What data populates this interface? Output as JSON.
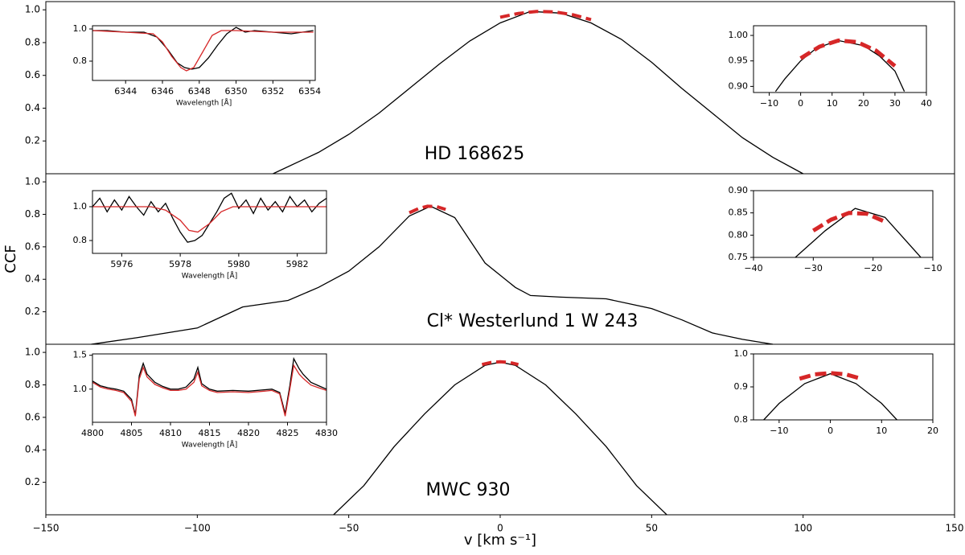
{
  "chart_data": {
    "type": "line",
    "xlabel": "v [km s⁻¹]",
    "ylabel": "CCF",
    "xlim": [
      -150,
      150
    ],
    "xticks": [
      {
        "value": -150,
        "label": "−150"
      },
      {
        "value": -100,
        "label": "−100"
      },
      {
        "value": -50,
        "label": "−50"
      },
      0,
      50,
      100,
      150
    ],
    "ylim": [
      0,
      1.05
    ],
    "yticks": [
      0.2,
      0.4,
      0.6,
      0.8,
      {
        "value": 1,
        "label": "1.0"
      }
    ],
    "panels": [
      {
        "title": "HD 168625",
        "series": [
          {
            "color": "#000000",
            "x": [
              -75,
              -60,
              -50,
              -40,
              -30,
              -20,
              -10,
              0,
              10,
              20,
              30,
              40,
              50,
              60,
              70,
              80,
              90,
              100
            ],
            "values": [
              0,
              0.13,
              0.24,
              0.37,
              0.52,
              0.67,
              0.81,
              0.92,
              0.99,
              0.98,
              0.92,
              0.82,
              0.68,
              0.52,
              0.37,
              0.22,
              0.1,
              0
            ]
          },
          {
            "color": "#d62728",
            "dash": true,
            "x": [
              0,
              6,
              12,
              18,
              24,
              30
            ],
            "values": [
              0.955,
              0.978,
              0.99,
              0.987,
              0.97,
              0.94
            ]
          }
        ],
        "insets": [
          {
            "xlabel": "Wavelength [Å]",
            "xlim": [
              6342.2,
              6354.3
            ],
            "xticks": [
              6344,
              6346,
              6348,
              6350,
              6352,
              6354
            ],
            "ylim": [
              0.68,
              1.02
            ],
            "yticks": [
              0.8,
              {
                "value": 1,
                "label": "1.0"
              }
            ],
            "series": [
              {
                "color": "#000000",
                "x": [
                  6342.2,
                  6343,
                  6344,
                  6345,
                  6345.7,
                  6346.3,
                  6346.8,
                  6347.2,
                  6347.6,
                  6348,
                  6348.5,
                  6349,
                  6349.5,
                  6350,
                  6350.5,
                  6351,
                  6352,
                  6353,
                  6354.2
                ],
                "values": [
                  0.99,
                  0.99,
                  0.98,
                  0.98,
                  0.95,
                  0.87,
                  0.79,
                  0.76,
                  0.75,
                  0.76,
                  0.82,
                  0.9,
                  0.97,
                  1.01,
                  0.98,
                  0.99,
                  0.98,
                  0.97,
                  0.99
                ]
              },
              {
                "color": "#d62728",
                "x": [
                  6342.2,
                  6344,
                  6345.5,
                  6346,
                  6346.5,
                  6347,
                  6347.3,
                  6347.7,
                  6348.2,
                  6348.7,
                  6349.2,
                  6350,
                  6352,
                  6354.2
                ],
                "values": [
                  0.99,
                  0.98,
                  0.97,
                  0.92,
                  0.83,
                  0.76,
                  0.74,
                  0.76,
                  0.86,
                  0.96,
                  0.99,
                  0.99,
                  0.98,
                  0.98
                ]
              }
            ]
          },
          {
            "xlim": [
              -15,
              40
            ],
            "xticks": [
              {
                "value": -10,
                "label": "−10"
              },
              0,
              10,
              20,
              30,
              40
            ],
            "ylim": [
              0.888,
              1.019
            ],
            "yticks": [
              {
                "value": 0.9,
                "label": "0.90"
              },
              0.95,
              {
                "value": 1,
                "label": "1.00"
              }
            ],
            "series": [
              {
                "color": "#000000",
                "x": [
                  -8,
                  -5,
                  0,
                  5,
                  12,
                  20,
                  25,
                  30,
                  33
                ],
                "values": [
                  0.89,
                  0.915,
                  0.95,
                  0.975,
                  0.99,
                  0.98,
                  0.96,
                  0.93,
                  0.89
                ]
              },
              {
                "color": "#d62728",
                "dash": true,
                "x": [
                  0,
                  6,
                  12,
                  18,
                  24,
                  30
                ],
                "values": [
                  0.955,
                  0.978,
                  0.99,
                  0.987,
                  0.97,
                  0.94
                ]
              }
            ]
          }
        ]
      },
      {
        "title": "Cl* Westerlund 1 W 243",
        "series": [
          {
            "color": "#000000",
            "x": [
              -135,
              -120,
              -100,
              -85,
              -70,
              -60,
              -50,
              -40,
              -30,
              -23,
              -15,
              -5,
              5,
              10,
              20,
              35,
              50,
              60,
              70,
              80,
              90
            ],
            "values": [
              0,
              0.04,
              0.1,
              0.23,
              0.27,
              0.35,
              0.45,
              0.6,
              0.79,
              0.85,
              0.78,
              0.5,
              0.35,
              0.3,
              0.29,
              0.28,
              0.22,
              0.15,
              0.07,
              0.03,
              0
            ]
          },
          {
            "color": "#d62728",
            "dash": true,
            "x": [
              -30,
              -27,
              -24,
              -21,
              -18
            ],
            "values": [
              0.81,
              0.835,
              0.85,
              0.848,
              0.83
            ]
          }
        ],
        "insets": [
          {
            "xlabel": "Wavelength [Å]",
            "xlim": [
              5975,
              5983
            ],
            "xticks": [
              5976,
              5978,
              5980,
              5982
            ],
            "ylim": [
              0.724,
              1.095
            ],
            "yticks": [
              0.8,
              {
                "value": 1,
                "label": "1.0"
              }
            ],
            "series": [
              {
                "color": "#000000",
                "x": [
                  5975,
                  5975.25,
                  5975.5,
                  5975.75,
                  5976,
                  5976.25,
                  5976.5,
                  5976.75,
                  5977,
                  5977.25,
                  5977.5,
                  5977.75,
                  5978,
                  5978.25,
                  5978.5,
                  5978.75,
                  5979,
                  5979.25,
                  5979.5,
                  5979.75,
                  5980,
                  5980.25,
                  5980.5,
                  5980.75,
                  5981,
                  5981.25,
                  5981.5,
                  5981.75,
                  5982,
                  5982.25,
                  5982.5,
                  5982.75,
                  5983
                ],
                "values": [
                  1.0,
                  1.05,
                  0.97,
                  1.04,
                  0.98,
                  1.06,
                  1.0,
                  0.95,
                  1.03,
                  0.97,
                  1.02,
                  0.93,
                  0.85,
                  0.79,
                  0.8,
                  0.83,
                  0.9,
                  0.97,
                  1.05,
                  1.08,
                  0.99,
                  1.04,
                  0.96,
                  1.05,
                  0.98,
                  1.03,
                  0.97,
                  1.06,
                  1.0,
                  1.04,
                  0.97,
                  1.02,
                  1.05
                ]
              },
              {
                "color": "#d62728",
                "x": [
                  5975,
                  5977,
                  5977.5,
                  5978,
                  5978.3,
                  5978.6,
                  5979,
                  5979.4,
                  5979.8,
                  5983
                ],
                "values": [
                  1.0,
                  1.0,
                  0.98,
                  0.92,
                  0.86,
                  0.85,
                  0.9,
                  0.97,
                  1.0,
                  1.0
                ]
              }
            ]
          },
          {
            "xlim": [
              -40,
              -10
            ],
            "xticks": [
              {
                "value": -40,
                "label": "−40"
              },
              {
                "value": -30,
                "label": "−30"
              },
              {
                "value": -20,
                "label": "−20"
              },
              {
                "value": -10,
                "label": "−10"
              }
            ],
            "ylim": [
              0.75,
              0.9
            ],
            "yticks": [
              0.75,
              {
                "value": 0.8,
                "label": "0.80"
              },
              0.85,
              {
                "value": 0.9,
                "label": "0.90"
              }
            ],
            "series": [
              {
                "color": "#000000",
                "x": [
                  -33,
                  -28,
                  -23,
                  -18,
                  -12
                ],
                "values": [
                  0.75,
                  0.81,
                  0.86,
                  0.84,
                  0.75
                ]
              },
              {
                "color": "#d62728",
                "dash": true,
                "x": [
                  -30,
                  -27,
                  -24,
                  -21,
                  -18
                ],
                "values": [
                  0.81,
                  0.835,
                  0.85,
                  0.848,
                  0.83
                ]
              }
            ]
          }
        ]
      },
      {
        "title": "MWC 930",
        "series": [
          {
            "color": "#000000",
            "x": [
              -55,
              -45,
              -35,
              -25,
              -15,
              -5,
              0,
              5,
              15,
              25,
              35,
              45,
              55
            ],
            "values": [
              0,
              0.18,
              0.42,
              0.62,
              0.8,
              0.92,
              0.94,
              0.92,
              0.8,
              0.62,
              0.42,
              0.18,
              0
            ]
          },
          {
            "color": "#d62728",
            "dash": true,
            "x": [
              -6,
              -3,
              0,
              3,
              6
            ],
            "values": [
              0.925,
              0.938,
              0.942,
              0.938,
              0.925
            ]
          }
        ],
        "insets": [
          {
            "xlabel": "Wavelength [Å]",
            "xlim": [
              4800,
              4830
            ],
            "xticks": [
              4800,
              4805,
              4810,
              4815,
              4820,
              4825,
              4830
            ],
            "ylim": [
              0.51,
              1.52
            ],
            "yticks": [
              {
                "value": 1,
                "label": "1.0"
              },
              1.5
            ],
            "series": [
              {
                "color": "#000000",
                "x": [
                  4800,
                  4801,
                  4802,
                  4803,
                  4804,
                  4805,
                  4805.5,
                  4806,
                  4806.5,
                  4807,
                  4808,
                  4809,
                  4810,
                  4811,
                  4812,
                  4813,
                  4813.5,
                  4814,
                  4815,
                  4816,
                  4818,
                  4820,
                  4822,
                  4823,
                  4824,
                  4824.7,
                  4825.3,
                  4825.8,
                  4826.5,
                  4827,
                  4828,
                  4829,
                  4830
                ],
                "values": [
                  1.12,
                  1.05,
                  1.02,
                  1.0,
                  0.97,
                  0.85,
                  0.62,
                  1.2,
                  1.38,
                  1.22,
                  1.1,
                  1.04,
                  1.0,
                  1.0,
                  1.03,
                  1.15,
                  1.32,
                  1.08,
                  1.0,
                  0.97,
                  0.98,
                  0.97,
                  0.99,
                  1.0,
                  0.95,
                  0.64,
                  1.05,
                  1.45,
                  1.3,
                  1.22,
                  1.1,
                  1.05,
                  1.0
                ]
              },
              {
                "color": "#d62728",
                "x": [
                  4800,
                  4801,
                  4802,
                  4803,
                  4804,
                  4805,
                  4805.5,
                  4806,
                  4806.5,
                  4807,
                  4808,
                  4809,
                  4810,
                  4811,
                  4812,
                  4813,
                  4813.5,
                  4814,
                  4815,
                  4816,
                  4818,
                  4820,
                  4822,
                  4823,
                  4824,
                  4824.7,
                  4825.3,
                  4825.8,
                  4826.5,
                  4827,
                  4828,
                  4829,
                  4830
                ],
                "values": [
                  1.1,
                  1.03,
                  1.0,
                  0.98,
                  0.95,
                  0.82,
                  0.6,
                  1.15,
                  1.32,
                  1.18,
                  1.07,
                  1.02,
                  0.98,
                  0.98,
                  1.0,
                  1.1,
                  1.25,
                  1.05,
                  0.98,
                  0.95,
                  0.96,
                  0.95,
                  0.97,
                  0.98,
                  0.93,
                  0.6,
                  1.0,
                  1.35,
                  1.22,
                  1.16,
                  1.06,
                  1.02,
                  0.98
                ]
              }
            ]
          },
          {
            "xlim": [
              -15,
              20
            ],
            "xticks": [
              {
                "value": -10,
                "label": "−10"
              },
              0,
              10,
              20
            ],
            "ylim": [
              0.8,
              1.0
            ],
            "yticks": [
              0.8,
              0.9,
              {
                "value": 1,
                "label": "1.0"
              }
            ],
            "series": [
              {
                "color": "#000000",
                "x": [
                  -13,
                  -10,
                  -5,
                  0,
                  5,
                  10,
                  13
                ],
                "values": [
                  0.8,
                  0.85,
                  0.91,
                  0.94,
                  0.91,
                  0.85,
                  0.8
                ]
              },
              {
                "color": "#d62728",
                "dash": true,
                "x": [
                  -6,
                  -3,
                  0,
                  3,
                  6
                ],
                "values": [
                  0.925,
                  0.938,
                  0.942,
                  0.938,
                  0.925
                ]
              }
            ]
          }
        ]
      }
    ]
  }
}
